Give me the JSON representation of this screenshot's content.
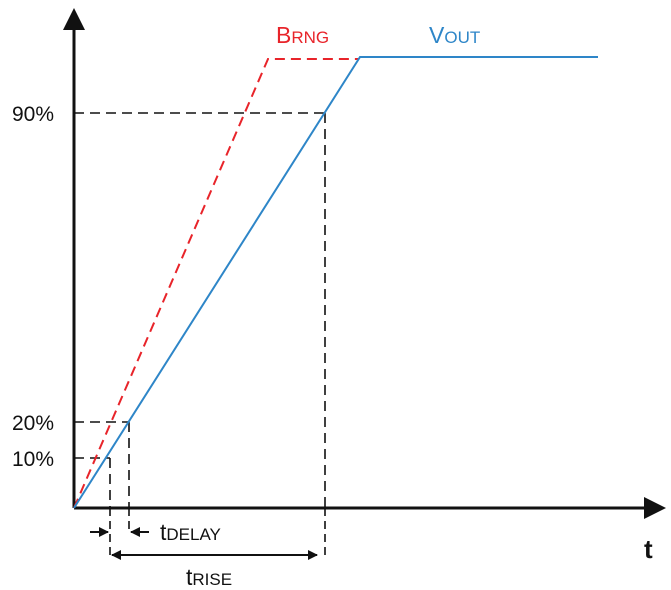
{
  "diagram": {
    "axis_x_label": "t",
    "y_levels": [
      {
        "label": "90%",
        "percent": 90
      },
      {
        "label": "20%",
        "percent": 20
      },
      {
        "label": "10%",
        "percent": 10
      }
    ],
    "series": [
      {
        "id": "brng",
        "main": "B",
        "sub": "RNG",
        "color": "#e8242a",
        "style": "dashed"
      },
      {
        "id": "vout",
        "main": "V",
        "sub": "OUT",
        "color": "#2e86c8",
        "style": "solid"
      }
    ],
    "intervals": [
      {
        "id": "delay",
        "main": "t",
        "sub": "DELAY"
      },
      {
        "id": "rise",
        "main": "t",
        "sub": "RISE"
      }
    ]
  }
}
